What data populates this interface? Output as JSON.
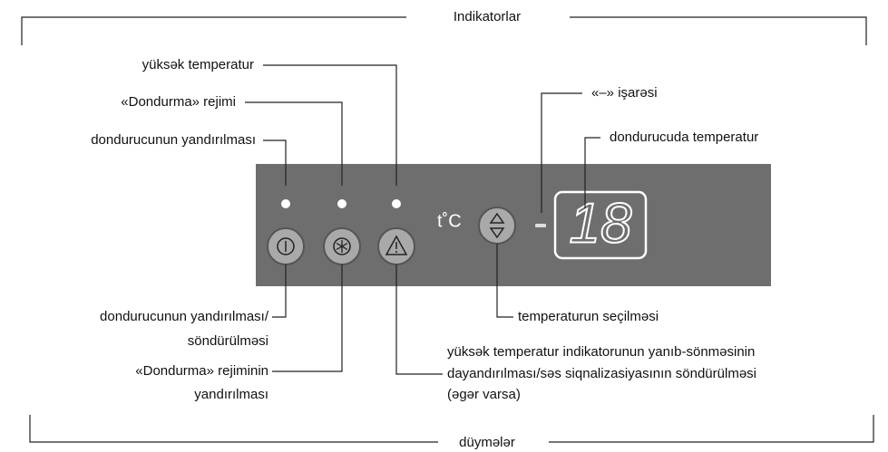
{
  "top_group": {
    "title": "Indikatorlar"
  },
  "bottom_group": {
    "title": "düymələr"
  },
  "indicators": [
    {
      "label": "yüksək temperatur"
    },
    {
      "label": "«Dondurma» rejimi"
    },
    {
      "label": "dondurucunun yandırılması"
    },
    {
      "label": "«–» işarəsi"
    },
    {
      "label": "dondurucuda temperatur"
    }
  ],
  "panel": {
    "unit": "t˚C",
    "display": "18"
  },
  "buttons": [
    {
      "lines": [
        "dondurucunun yandırılması/",
        "söndürülməsi"
      ]
    },
    {
      "lines": [
        "«Dondurma» rejiminin",
        "yandırılması"
      ]
    },
    {
      "lines": [
        "yüksək temperatur indikatorunun yanıb-sönməsinin",
        "dayandırılması/səs siqnalizasiyasının söndürülməsi",
        "(əgər varsa)"
      ]
    },
    {
      "lines": [
        "temperaturun seçilməsi"
      ]
    }
  ]
}
